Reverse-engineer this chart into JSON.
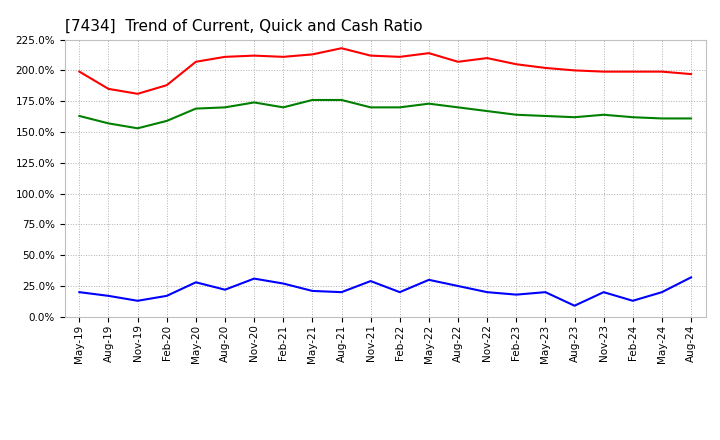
{
  "title": "[7434]  Trend of Current, Quick and Cash Ratio",
  "x_labels": [
    "May-19",
    "Aug-19",
    "Nov-19",
    "Feb-20",
    "May-20",
    "Aug-20",
    "Nov-20",
    "Feb-21",
    "May-21",
    "Aug-21",
    "Nov-21",
    "Feb-22",
    "May-22",
    "Aug-22",
    "Nov-22",
    "Feb-23",
    "May-23",
    "Aug-23",
    "Nov-23",
    "Feb-24",
    "May-24",
    "Aug-24"
  ],
  "current_ratio": [
    199.0,
    185.0,
    181.0,
    188.0,
    207.0,
    211.0,
    212.0,
    211.0,
    213.0,
    218.0,
    212.0,
    211.0,
    214.0,
    207.0,
    210.0,
    205.0,
    202.0,
    200.0,
    199.0,
    199.0,
    199.0,
    197.0
  ],
  "quick_ratio": [
    163.0,
    157.0,
    153.0,
    159.0,
    169.0,
    170.0,
    174.0,
    170.0,
    176.0,
    176.0,
    170.0,
    170.0,
    173.0,
    170.0,
    167.0,
    164.0,
    163.0,
    162.0,
    164.0,
    162.0,
    161.0,
    161.0
  ],
  "cash_ratio": [
    20.0,
    17.0,
    13.0,
    17.0,
    28.0,
    22.0,
    31.0,
    27.0,
    21.0,
    20.0,
    29.0,
    20.0,
    30.0,
    25.0,
    20.0,
    18.0,
    20.0,
    9.0,
    20.0,
    13.0,
    20.0,
    32.0
  ],
  "current_color": "#ff0000",
  "quick_color": "#008000",
  "cash_color": "#0000ff",
  "ylim": [
    0.0,
    225.0
  ],
  "yticks": [
    0.0,
    25.0,
    50.0,
    75.0,
    100.0,
    125.0,
    150.0,
    175.0,
    200.0,
    225.0
  ],
  "background_color": "#ffffff",
  "plot_bg_color": "#ffffff",
  "grid_color": "#b0b0b0",
  "title_fontsize": 11,
  "tick_fontsize": 7.5,
  "legend_fontsize": 9,
  "line_width": 1.5
}
